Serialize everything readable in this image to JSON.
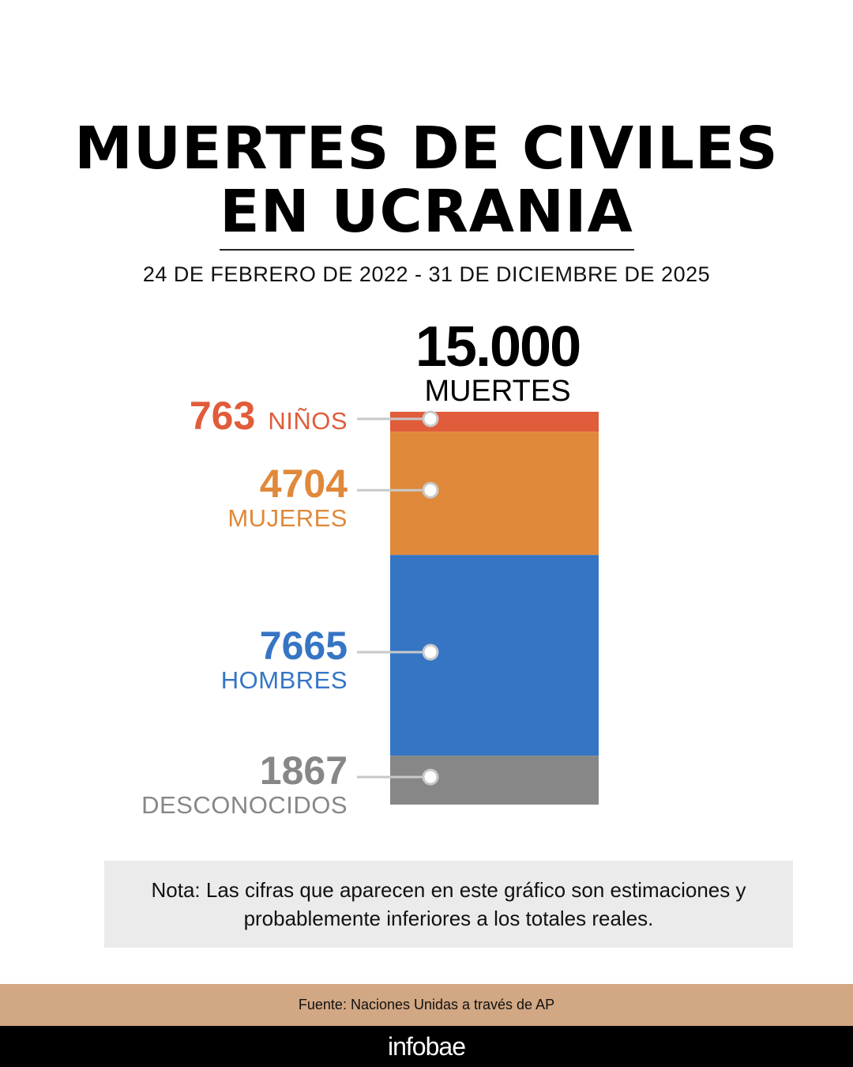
{
  "title_lines": [
    "MUERTES DE CIVILES",
    "EN UCRANIA"
  ],
  "subtitle": "24 DE FEBRERO DE 2022 - 31 DE DICIEMBRE DE 2025",
  "total": {
    "value": "15.000",
    "label": "MUERTES"
  },
  "chart_data": {
    "type": "bar",
    "stacked": true,
    "categories": [
      "NIÑOS",
      "MUJERES",
      "HOMBRES",
      "DESCONOCIDOS"
    ],
    "values": [
      763,
      4704,
      7665,
      1867
    ],
    "value_labels": [
      "763",
      "4704",
      "7665",
      "1867"
    ],
    "colors": [
      "#e05c3a",
      "#e0893a",
      "#3575c4",
      "#878787"
    ]
  },
  "note": "Nota: Las cifras que aparecen en este gráfico son estimaciones y probablemente inferiores a los totales reales.",
  "source": "Fuente: Naciones Unidas a través de AP",
  "brand": "infobae",
  "colors": {
    "source_bar": "#d2a783",
    "note_bg": "#ebebeb",
    "footer": "#000000"
  }
}
